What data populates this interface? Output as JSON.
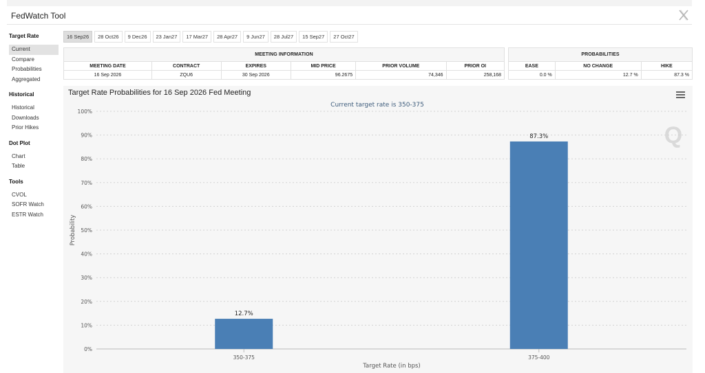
{
  "app": {
    "title": "FedWatch Tool"
  },
  "sidebar": {
    "groups": [
      {
        "heading": "Target Rate",
        "items": [
          "Current",
          "Compare",
          "Probabilities",
          "Aggregated"
        ],
        "active": 0
      },
      {
        "heading": "Historical",
        "items": [
          "Historical",
          "Downloads",
          "Prior Hikes"
        ]
      },
      {
        "heading": "Dot Plot",
        "items": [
          "Chart",
          "Table"
        ]
      },
      {
        "heading": "Tools",
        "items": [
          "CVOL",
          "SOFR Watch",
          "ESTR Watch"
        ]
      }
    ]
  },
  "tabs": {
    "items": [
      "16 Sep26",
      "28 Oct26",
      "9 Dec26",
      "23 Jan27",
      "17 Mar27",
      "28 Apr27",
      "9 Jun27",
      "28 Jul27",
      "15 Sep27",
      "27 Oct27"
    ],
    "active": 0
  },
  "meeting_info": {
    "heading": "MEETING INFORMATION",
    "columns": [
      "MEETING DATE",
      "CONTRACT",
      "EXPIRES",
      "MID PRICE",
      "PRIOR VOLUME",
      "PRIOR OI"
    ],
    "row": [
      "16 Sep 2026",
      "ZQU6",
      "30 Sep 2026",
      "96.2675",
      "74,346",
      "258,168"
    ]
  },
  "probabilities": {
    "heading": "PROBABILITIES",
    "columns": [
      "EASE",
      "NO CHANGE",
      "HIKE"
    ],
    "row": [
      "0.0 %",
      "12.7 %",
      "87.3 %"
    ]
  },
  "chart_data": {
    "type": "bar",
    "title": "Target Rate Probabilities for 16 Sep 2026 Fed Meeting",
    "subtitle": "Current target rate is 350-375",
    "xlabel": "Target Rate (in bps)",
    "ylabel": "Probability",
    "categories": [
      "350-375",
      "375-400"
    ],
    "values": [
      12.7,
      87.3
    ],
    "data_labels": [
      "12.7%",
      "87.3%"
    ],
    "ylim": [
      0,
      100
    ],
    "yticks": [
      0,
      10,
      20,
      30,
      40,
      50,
      60,
      70,
      80,
      90,
      100
    ],
    "ytick_labels": [
      "0%",
      "10%",
      "20%",
      "30%",
      "40%",
      "50%",
      "60%",
      "70%",
      "80%",
      "90%",
      "100%"
    ],
    "grid": true,
    "bar_color": "#4a7fb5",
    "watermark": "Q"
  },
  "colors": {
    "bar": "#4a7fb5",
    "panel": "#f6f6f6"
  }
}
